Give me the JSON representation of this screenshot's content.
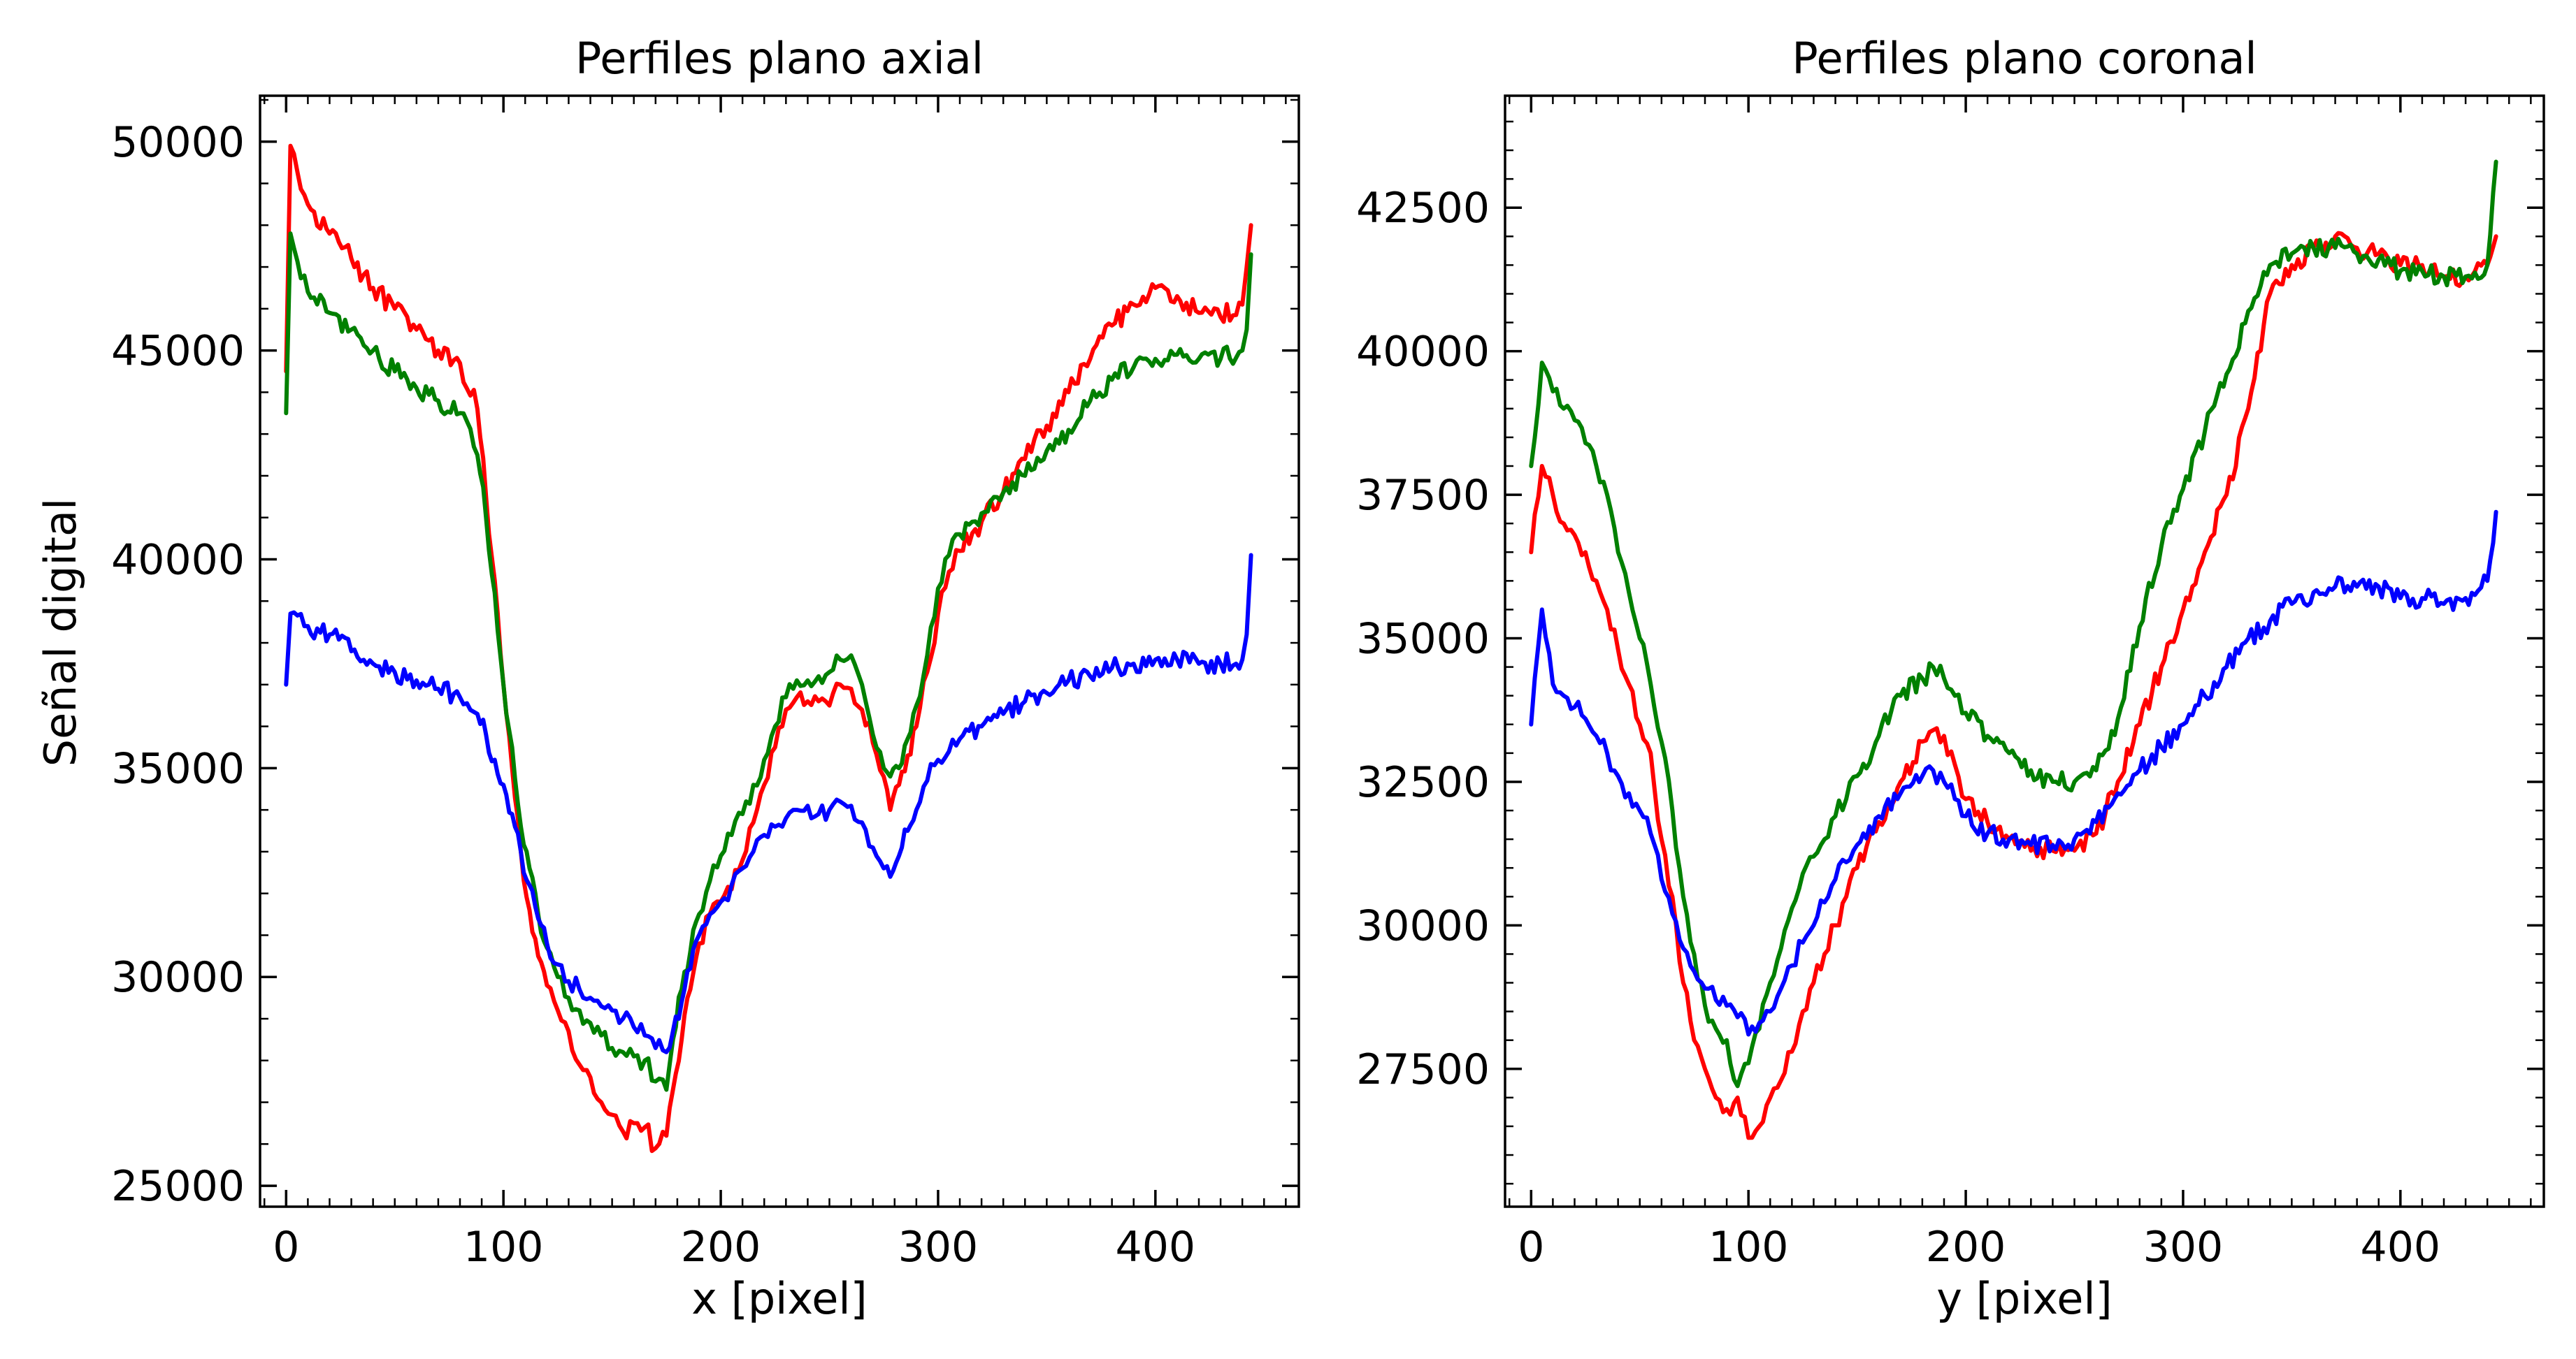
{
  "chart_data": [
    {
      "type": "line",
      "title": "Perfiles plano axial",
      "xlabel": "x [pixel]",
      "ylabel": "Señal digital",
      "xlim": [
        -12,
        466
      ],
      "ylim": [
        24500,
        51100
      ],
      "xticks": [
        0,
        100,
        200,
        300,
        400
      ],
      "yticks": [
        25000,
        30000,
        35000,
        40000,
        45000,
        50000
      ],
      "xticks_minor": [
        -10,
        10,
        20,
        30,
        40,
        50,
        60,
        70,
        80,
        90,
        110,
        120,
        130,
        140,
        150,
        160,
        170,
        180,
        190,
        210,
        220,
        230,
        240,
        250,
        260,
        270,
        280,
        290,
        310,
        320,
        330,
        340,
        350,
        360,
        370,
        380,
        390,
        410,
        420,
        430,
        440,
        450,
        460
      ],
      "yticks_minor": [
        26000,
        27000,
        28000,
        29000,
        31000,
        32000,
        33000,
        34000,
        36000,
        37000,
        38000,
        39000,
        41000,
        42000,
        43000,
        44000,
        46000,
        47000,
        48000,
        49000,
        51000
      ],
      "grid": false,
      "series": [
        {
          "color": "#ff0000",
          "x": [
            0,
            2,
            10,
            20,
            30,
            40,
            50,
            60,
            70,
            80,
            88,
            92,
            96,
            100,
            104,
            108,
            112,
            116,
            120,
            125,
            130,
            135,
            140,
            145,
            150,
            155,
            160,
            165,
            170,
            175,
            178,
            182,
            186,
            190,
            195,
            200,
            205,
            210,
            215,
            220,
            225,
            230,
            235,
            240,
            245,
            250,
            255,
            260,
            265,
            270,
            275,
            278,
            282,
            286,
            290,
            295,
            300,
            305,
            310,
            320,
            330,
            340,
            350,
            360,
            370,
            380,
            390,
            400,
            410,
            420,
            430,
            440,
            442,
            444
          ],
          "y": [
            44500,
            49900,
            48500,
            47800,
            47200,
            46500,
            46000,
            45500,
            45000,
            44700,
            43600,
            41500,
            39500,
            37000,
            35000,
            33000,
            31600,
            30500,
            29800,
            29200,
            28700,
            27900,
            27600,
            27000,
            26700,
            26300,
            26500,
            26400,
            25900,
            26200,
            27300,
            28500,
            29700,
            30800,
            31500,
            31800,
            32100,
            32800,
            33700,
            34600,
            35500,
            36400,
            36700,
            36600,
            36600,
            36500,
            37000,
            36900,
            36400,
            35600,
            34800,
            34000,
            34600,
            35300,
            36000,
            37300,
            38700,
            39700,
            40200,
            40900,
            41600,
            42400,
            43200,
            44000,
            44800,
            45600,
            46100,
            46500,
            46300,
            45900,
            45800,
            46100,
            47000,
            48000
          ]
        },
        {
          "color": "#008000",
          "x": [
            0,
            2,
            10,
            20,
            30,
            40,
            50,
            60,
            70,
            80,
            88,
            92,
            96,
            100,
            104,
            108,
            112,
            116,
            120,
            125,
            130,
            135,
            140,
            145,
            150,
            155,
            160,
            165,
            170,
            175,
            178,
            182,
            186,
            190,
            195,
            200,
            205,
            210,
            215,
            220,
            225,
            230,
            235,
            240,
            245,
            250,
            255,
            260,
            265,
            270,
            275,
            278,
            282,
            286,
            290,
            295,
            300,
            305,
            310,
            320,
            330,
            340,
            350,
            360,
            370,
            380,
            390,
            400,
            410,
            420,
            430,
            440,
            442,
            444
          ],
          "y": [
            43500,
            47800,
            46400,
            45900,
            45500,
            45000,
            44500,
            44100,
            43800,
            43500,
            42500,
            41000,
            39200,
            37000,
            35500,
            33600,
            32600,
            31500,
            30700,
            30000,
            29500,
            29200,
            28900,
            28600,
            28300,
            28200,
            28100,
            28000,
            27500,
            27300,
            28500,
            29700,
            30600,
            31500,
            32300,
            32900,
            33400,
            33900,
            34600,
            35200,
            36000,
            36700,
            37100,
            37100,
            37200,
            37300,
            37600,
            37700,
            37000,
            35800,
            35000,
            34800,
            35000,
            35700,
            36500,
            37700,
            39300,
            40100,
            40600,
            41100,
            41600,
            42000,
            42600,
            43100,
            43800,
            44300,
            44600,
            44800,
            44900,
            44800,
            44800,
            45000,
            45500,
            47300
          ]
        },
        {
          "color": "#0000ff",
          "x": [
            0,
            2,
            10,
            20,
            30,
            40,
            50,
            60,
            70,
            80,
            88,
            92,
            96,
            100,
            104,
            108,
            112,
            116,
            120,
            125,
            130,
            135,
            140,
            145,
            150,
            155,
            160,
            165,
            170,
            175,
            178,
            182,
            186,
            190,
            195,
            200,
            205,
            210,
            215,
            220,
            225,
            230,
            235,
            240,
            245,
            250,
            255,
            260,
            265,
            270,
            275,
            278,
            282,
            286,
            290,
            295,
            300,
            305,
            310,
            320,
            330,
            340,
            350,
            360,
            370,
            380,
            390,
            400,
            410,
            420,
            430,
            440,
            442,
            444
          ],
          "y": [
            37000,
            38700,
            38400,
            38200,
            37800,
            37500,
            37300,
            37100,
            36900,
            36700,
            36300,
            35800,
            35200,
            34600,
            33900,
            33000,
            32200,
            31400,
            30800,
            30300,
            29900,
            29700,
            29500,
            29300,
            29200,
            29000,
            28800,
            28600,
            28300,
            28200,
            28700,
            29400,
            30200,
            31000,
            31500,
            31800,
            32200,
            32600,
            33000,
            33400,
            33600,
            33800,
            34000,
            34100,
            33900,
            34000,
            34200,
            34100,
            33700,
            33100,
            32600,
            32400,
            32900,
            33500,
            34000,
            34700,
            35200,
            35400,
            35700,
            36000,
            36300,
            36600,
            36800,
            37100,
            37200,
            37400,
            37500,
            37600,
            37600,
            37500,
            37500,
            37600,
            38200,
            40100
          ]
        }
      ]
    },
    {
      "type": "line",
      "title": "Perfiles plano coronal",
      "xlabel": "y [pixel]",
      "ylabel": "",
      "xlim": [
        -12,
        466
      ],
      "ylim": [
        25100,
        44450
      ],
      "xticks": [
        0,
        100,
        200,
        300,
        400
      ],
      "yticks": [
        27500,
        30000,
        32500,
        35000,
        37500,
        40000,
        42500
      ],
      "xticks_minor": [
        -10,
        10,
        20,
        30,
        40,
        50,
        60,
        70,
        80,
        90,
        110,
        120,
        130,
        140,
        150,
        160,
        170,
        180,
        190,
        210,
        220,
        230,
        240,
        250,
        260,
        270,
        280,
        290,
        310,
        320,
        330,
        340,
        350,
        360,
        370,
        380,
        390,
        410,
        420,
        430,
        440,
        450,
        460
      ],
      "yticks_minor": [
        25500,
        26000,
        26500,
        27000,
        28000,
        28500,
        29000,
        29500,
        30500,
        31000,
        31500,
        32000,
        33000,
        33500,
        34000,
        34500,
        35500,
        36000,
        36500,
        37000,
        38000,
        38500,
        39000,
        39500,
        40500,
        41000,
        41500,
        42000,
        43000,
        43500,
        44000
      ],
      "grid": false,
      "series": [
        {
          "color": "#ff0000",
          "x": [
            0,
            5,
            10,
            15,
            20,
            25,
            30,
            35,
            40,
            45,
            50,
            55,
            60,
            65,
            70,
            75,
            80,
            85,
            90,
            95,
            100,
            105,
            110,
            115,
            120,
            125,
            130,
            135,
            140,
            145,
            150,
            160,
            170,
            180,
            185,
            190,
            195,
            200,
            210,
            220,
            230,
            240,
            250,
            260,
            270,
            280,
            290,
            300,
            310,
            320,
            330,
            340,
            350,
            360,
            370,
            380,
            390,
            400,
            410,
            420,
            430,
            440,
            444
          ],
          "y": [
            36500,
            38000,
            37500,
            37000,
            36800,
            36500,
            36000,
            35500,
            34800,
            34200,
            33500,
            33000,
            31500,
            30500,
            29000,
            28000,
            27500,
            27000,
            26800,
            27000,
            26300,
            26500,
            27000,
            27300,
            27800,
            28500,
            29000,
            29500,
            30000,
            30500,
            31000,
            31800,
            32500,
            33200,
            33400,
            33300,
            32800,
            32200,
            31800,
            31500,
            31300,
            31300,
            31300,
            31600,
            32500,
            33500,
            34500,
            35500,
            36500,
            37500,
            39000,
            41000,
            41500,
            41800,
            42000,
            41800,
            41700,
            41500,
            41500,
            41300,
            41300,
            41500,
            42000
          ]
        },
        {
          "color": "#008000",
          "x": [
            0,
            5,
            10,
            15,
            20,
            25,
            30,
            35,
            40,
            45,
            50,
            55,
            60,
            65,
            70,
            75,
            80,
            85,
            90,
            95,
            100,
            105,
            110,
            115,
            120,
            125,
            130,
            135,
            140,
            145,
            150,
            160,
            170,
            180,
            185,
            190,
            195,
            200,
            210,
            220,
            230,
            240,
            250,
            260,
            270,
            280,
            290,
            300,
            310,
            320,
            330,
            340,
            350,
            360,
            370,
            380,
            390,
            400,
            410,
            420,
            430,
            440,
            444
          ],
          "y": [
            38000,
            39800,
            39300,
            39000,
            38800,
            38400,
            38000,
            37500,
            36500,
            35800,
            35000,
            34200,
            33200,
            32000,
            30500,
            29500,
            28600,
            28200,
            28000,
            27200,
            27600,
            28200,
            29000,
            29600,
            30300,
            30900,
            31200,
            31500,
            31900,
            32200,
            32600,
            33300,
            34000,
            34300,
            34500,
            34300,
            34000,
            33700,
            33300,
            33000,
            32700,
            32500,
            32500,
            32700,
            33600,
            35200,
            36600,
            37600,
            38600,
            39600,
            40700,
            41500,
            41700,
            41800,
            41800,
            41700,
            41600,
            41400,
            41400,
            41300,
            41300,
            41500,
            43300
          ]
        },
        {
          "color": "#0000ff",
          "x": [
            0,
            5,
            10,
            15,
            20,
            25,
            30,
            35,
            40,
            45,
            50,
            55,
            60,
            65,
            70,
            75,
            80,
            85,
            90,
            95,
            100,
            105,
            110,
            115,
            120,
            125,
            130,
            135,
            140,
            145,
            150,
            160,
            170,
            180,
            185,
            190,
            195,
            200,
            210,
            220,
            230,
            240,
            250,
            260,
            270,
            280,
            290,
            300,
            310,
            320,
            330,
            340,
            350,
            360,
            370,
            380,
            390,
            400,
            410,
            420,
            430,
            440,
            444
          ],
          "y": [
            33500,
            35500,
            34200,
            34000,
            33800,
            33600,
            33300,
            33000,
            32600,
            32300,
            32000,
            31600,
            30800,
            30200,
            29600,
            29200,
            28900,
            28700,
            28600,
            28400,
            28100,
            28300,
            28500,
            28900,
            29300,
            29700,
            30000,
            30400,
            30800,
            31100,
            31400,
            31900,
            32300,
            32600,
            32700,
            32500,
            32200,
            31900,
            31600,
            31500,
            31400,
            31400,
            31500,
            31800,
            32300,
            32700,
            33100,
            33500,
            34000,
            34500,
            35000,
            35300,
            35600,
            35800,
            35900,
            35900,
            35900,
            35700,
            35700,
            35600,
            35700,
            36000,
            37200
          ]
        }
      ]
    }
  ]
}
